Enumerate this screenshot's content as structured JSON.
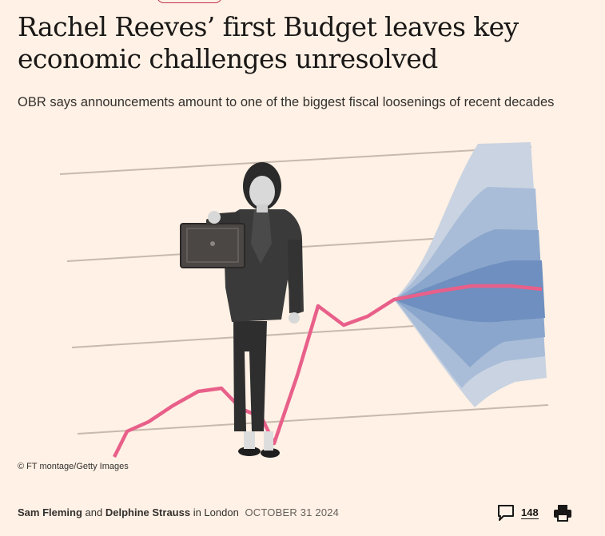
{
  "article": {
    "headline": "Rachel Reeves’ first Budget leaves key economic challenges unresolved",
    "standfirst": "OBR says announcements amount to one of the biggest fiscal loosenings of recent decades"
  },
  "image": {
    "credit": "© FT montage/Getty Images",
    "description_icon": "photo-montage"
  },
  "byline": {
    "author1": "Sam Fleming",
    "conjunction": "and",
    "author2": "Delphine Strauss",
    "location": "in London",
    "date": "OCTOBER 31 2024"
  },
  "tools": {
    "comments_icon": "comment-icon",
    "comment_count": "148",
    "print_icon": "print-icon"
  },
  "colors": {
    "background": "#fff1e5",
    "accent_line": "#e8608a",
    "fan_blue": "#7a9cc8"
  }
}
